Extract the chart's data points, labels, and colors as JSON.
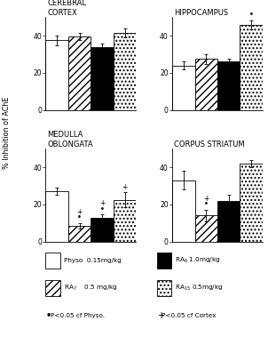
{
  "subplots": [
    {
      "title": "CEREBRAL\nCORTEX",
      "bars": [
        37.5,
        39.5,
        34.0,
        41.5
      ],
      "errors": [
        2.5,
        2.0,
        2.0,
        2.5
      ],
      "dot_markers": [
        false,
        false,
        false,
        false
      ],
      "plus_markers": [
        false,
        false,
        false,
        false
      ]
    },
    {
      "title": "HIPPOCAMPUS",
      "bars": [
        24.0,
        27.5,
        26.0,
        46.0
      ],
      "errors": [
        2.0,
        2.5,
        1.5,
        2.5
      ],
      "dot_markers": [
        false,
        false,
        false,
        true
      ],
      "plus_markers": [
        false,
        false,
        false,
        false
      ]
    },
    {
      "title": "MEDULLA\nOBLONGATA",
      "bars": [
        27.0,
        8.5,
        13.0,
        22.5
      ],
      "errors": [
        2.0,
        1.5,
        1.5,
        4.0
      ],
      "dot_markers": [
        false,
        true,
        true,
        false
      ],
      "plus_markers": [
        false,
        true,
        true,
        true
      ]
    },
    {
      "title": "CORPUS STRIATUM",
      "bars": [
        33.0,
        14.0,
        22.0,
        42.0
      ],
      "errors": [
        5.0,
        3.0,
        3.0,
        2.0
      ],
      "dot_markers": [
        false,
        true,
        false,
        false
      ],
      "plus_markers": [
        false,
        true,
        false,
        false
      ]
    }
  ],
  "ylim": [
    0,
    50
  ],
  "yticks": [
    0,
    20,
    40
  ],
  "ylabel": "% Inhibition of AChE",
  "bar_width": 0.15,
  "fontsize_title": 6.0,
  "fontsize_tick": 5.5,
  "fontsize_legend": 5.2
}
